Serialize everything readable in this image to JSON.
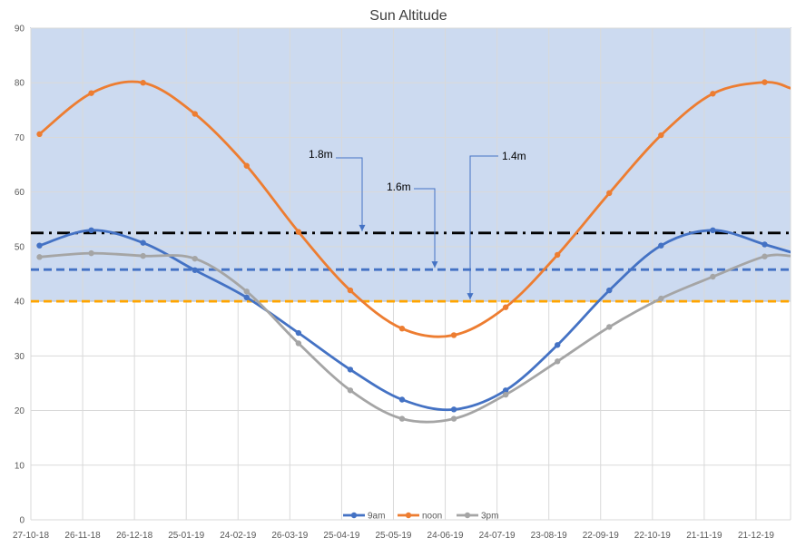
{
  "chart_data": {
    "type": "line",
    "title": "Sun Altitude",
    "xlabel": "",
    "ylabel": "",
    "ylim": [
      0,
      90
    ],
    "yticks": [
      0,
      10,
      20,
      30,
      40,
      50,
      60,
      70,
      80,
      90
    ],
    "xlim": [
      "27-10-18",
      "10-01-20"
    ],
    "xtick_labels": [
      "27-10-18",
      "26-11-18",
      "26-12-18",
      "25-01-19",
      "24-02-19",
      "26-03-19",
      "25-04-19",
      "25-05-19",
      "24-06-19",
      "24-07-19",
      "23-08-19",
      "22-09-19",
      "22-10-19",
      "21-11-19",
      "21-12-19"
    ],
    "grid": true,
    "legend": "bottom",
    "shaded_band": {
      "y_from": 40,
      "y_to": 90,
      "color": "#ccdaf0"
    },
    "series": [
      {
        "name": "9am",
        "color": "#4472c4",
        "points": [
          [
            "2018-11-01",
            50.2
          ],
          [
            "2018-12-01",
            53.0
          ],
          [
            "2018-12-31",
            50.7
          ],
          [
            "2019-01-30",
            45.7
          ],
          [
            "2019-03-01",
            40.7
          ],
          [
            "2019-03-31",
            34.2
          ],
          [
            "2019-04-30",
            27.5
          ],
          [
            "2019-05-30",
            22.0
          ],
          [
            "2019-06-29",
            20.2
          ],
          [
            "2019-07-29",
            23.7
          ],
          [
            "2019-08-28",
            32.0
          ],
          [
            "2019-09-27",
            42.0
          ],
          [
            "2019-10-27",
            50.2
          ],
          [
            "2019-11-26",
            53.0
          ],
          [
            "2019-12-26",
            50.4
          ],
          [
            "2020-01-10",
            49.0
          ]
        ]
      },
      {
        "name": "noon",
        "color": "#ed7d31",
        "points": [
          [
            "2018-11-01",
            70.6
          ],
          [
            "2018-12-01",
            78.1
          ],
          [
            "2018-12-31",
            80.0
          ],
          [
            "2019-01-30",
            74.3
          ],
          [
            "2019-03-01",
            64.8
          ],
          [
            "2019-03-31",
            52.7
          ],
          [
            "2019-04-30",
            42.0
          ],
          [
            "2019-05-30",
            35.0
          ],
          [
            "2019-06-29",
            33.8
          ],
          [
            "2019-07-29",
            38.9
          ],
          [
            "2019-08-28",
            48.5
          ],
          [
            "2019-09-27",
            59.8
          ],
          [
            "2019-10-27",
            70.4
          ],
          [
            "2019-11-26",
            78.0
          ],
          [
            "2019-12-26",
            80.1
          ],
          [
            "2020-01-10",
            79.0
          ]
        ]
      },
      {
        "name": "3pm",
        "color": "#a5a5a5",
        "points": [
          [
            "2018-11-01",
            48.1
          ],
          [
            "2018-12-01",
            48.8
          ],
          [
            "2018-12-31",
            48.3
          ],
          [
            "2019-01-30",
            47.8
          ],
          [
            "2019-03-01",
            41.8
          ],
          [
            "2019-03-31",
            32.3
          ],
          [
            "2019-04-30",
            23.7
          ],
          [
            "2019-05-30",
            18.5
          ],
          [
            "2019-06-29",
            18.5
          ],
          [
            "2019-07-29",
            22.9
          ],
          [
            "2019-08-28",
            29.0
          ],
          [
            "2019-09-27",
            35.3
          ],
          [
            "2019-10-27",
            40.5
          ],
          [
            "2019-11-26",
            44.5
          ],
          [
            "2019-12-26",
            48.2
          ],
          [
            "2020-01-10",
            48.3
          ]
        ]
      }
    ],
    "reference_lines": [
      {
        "y": 52.5,
        "color": "#000000",
        "style": "dash-dot"
      },
      {
        "y": 45.8,
        "color": "#4472c4",
        "style": "dashed"
      },
      {
        "y": 40.0,
        "color": "#ffa500",
        "style": "dashed"
      }
    ],
    "annotations": [
      {
        "text": "1.8m",
        "points_to_y": 52.5
      },
      {
        "text": "1.6m",
        "points_to_y": 45.8
      },
      {
        "text": "1.4m",
        "points_to_y": 40.0
      }
    ]
  }
}
